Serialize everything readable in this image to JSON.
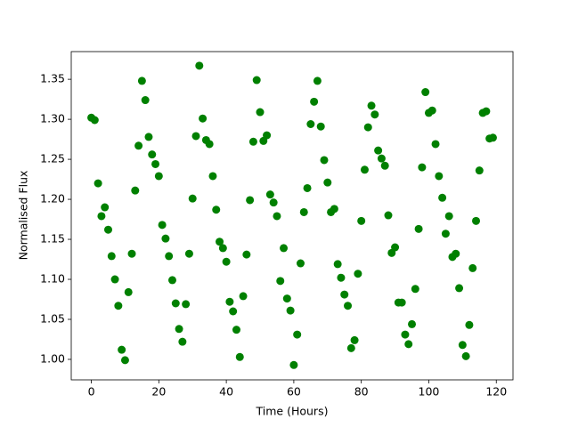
{
  "chart_data": {
    "type": "scatter",
    "xlabel": "Time (Hours)",
    "ylabel": "Normalised Flux",
    "color": "#008000",
    "xlim": [
      -5.95,
      124.95
    ],
    "ylim": [
      0.9744,
      1.3846
    ],
    "xticks": [
      0,
      20,
      40,
      60,
      80,
      100,
      120
    ],
    "yticks": [
      {
        "value": 1,
        "label": "1.00"
      },
      1.05,
      {
        "value": 1.1,
        "label": "1.10"
      },
      1.15,
      {
        "value": 1.2,
        "label": "1.20"
      },
      1.25,
      {
        "value": 1.3,
        "label": "1.30"
      },
      1.35
    ],
    "x": [
      0,
      1,
      2,
      3,
      4,
      5,
      6,
      7,
      8,
      9,
      10,
      11,
      12,
      13,
      14,
      15,
      16,
      17,
      18,
      19,
      20,
      21,
      22,
      23,
      24,
      25,
      26,
      27,
      28,
      29,
      30,
      31,
      32,
      33,
      34,
      35,
      36,
      37,
      38,
      39,
      40,
      41,
      42,
      43,
      44,
      45,
      46,
      47,
      48,
      49,
      50,
      51,
      52,
      53,
      54,
      55,
      56,
      57,
      58,
      59,
      60,
      61,
      62,
      63,
      64,
      65,
      66,
      67,
      68,
      69,
      70,
      71,
      72,
      73,
      74,
      75,
      76,
      77,
      78,
      79,
      80,
      81,
      82,
      83,
      84,
      85,
      86,
      87,
      88,
      89,
      90,
      91,
      92,
      93,
      94,
      95,
      96,
      97,
      98,
      99,
      100,
      101,
      102,
      103,
      104,
      105,
      106,
      107,
      108,
      109,
      110,
      111,
      112,
      113,
      114,
      115,
      116,
      117,
      118,
      119
    ],
    "values": [
      1.302,
      1.299,
      1.22,
      1.179,
      1.19,
      1.162,
      1.129,
      1.1,
      1.067,
      1.012,
      0.999,
      1.084,
      1.132,
      1.211,
      1.267,
      1.348,
      1.324,
      1.278,
      1.256,
      1.244,
      1.229,
      1.168,
      1.151,
      1.129,
      1.099,
      1.07,
      1.038,
      1.022,
      1.069,
      1.132,
      1.201,
      1.279,
      1.367,
      1.301,
      1.274,
      1.269,
      1.229,
      1.187,
      1.147,
      1.139,
      1.122,
      1.072,
      1.06,
      1.037,
      1.003,
      1.079,
      1.131,
      1.199,
      1.272,
      1.349,
      1.309,
      1.273,
      1.28,
      1.206,
      1.196,
      1.179,
      1.098,
      1.139,
      1.076,
      1.061,
      0.993,
      1.031,
      1.12,
      1.184,
      1.214,
      1.294,
      1.322,
      1.348,
      1.291,
      1.249,
      1.221,
      1.184,
      1.188,
      1.119,
      1.102,
      1.081,
      1.067,
      1.014,
      1.024,
      1.107,
      1.173,
      1.237,
      1.29,
      1.317,
      1.306,
      1.261,
      1.251,
      1.242,
      1.18,
      1.133,
      1.14,
      1.071,
      1.071,
      1.031,
      1.019,
      1.044,
      1.088,
      1.163,
      1.24,
      1.334,
      1.308,
      1.311,
      1.269,
      1.229,
      1.202,
      1.157,
      1.179,
      1.128,
      1.132,
      1.089,
      1.018,
      1.004,
      1.043,
      1.114,
      1.173,
      1.236,
      1.308,
      1.31,
      1.276,
      1.277
    ]
  }
}
